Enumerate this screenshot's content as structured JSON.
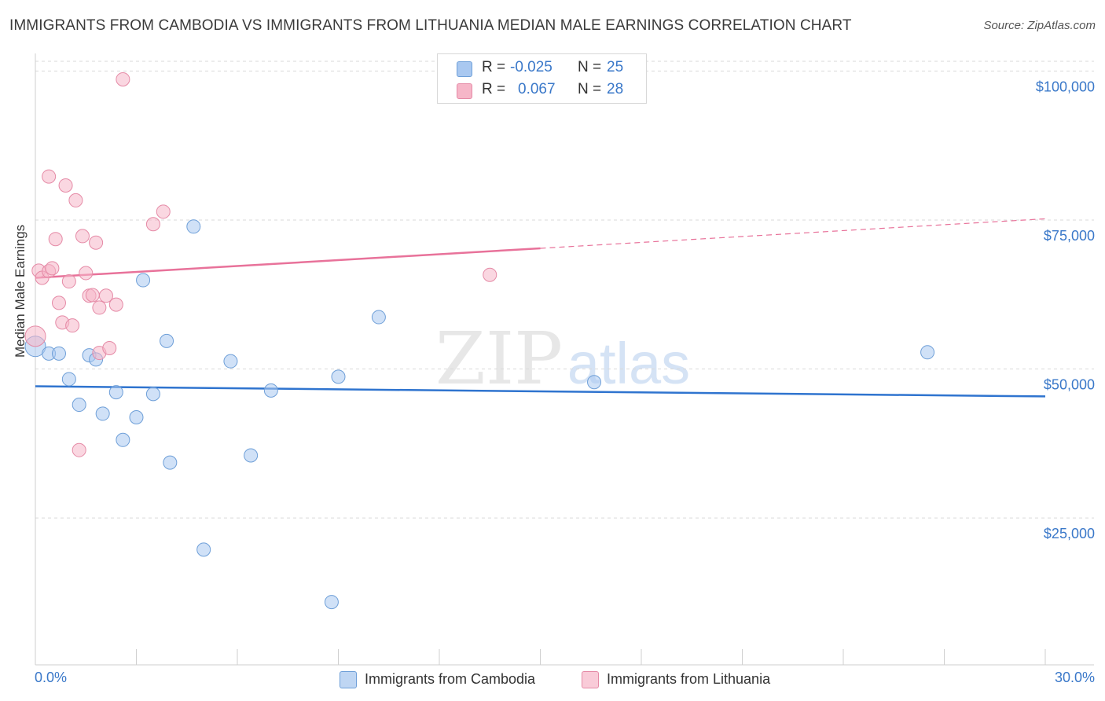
{
  "title": "IMMIGRANTS FROM CAMBODIA VS IMMIGRANTS FROM LITHUANIA MEDIAN MALE EARNINGS CORRELATION CHART",
  "source": "Source: ZipAtlas.com",
  "watermark": {
    "zip": "ZIP",
    "atlas": "atlas"
  },
  "stats": [
    {
      "r_label": "R =",
      "r_value": "-0.025",
      "n_label": "N =",
      "n_value": "25",
      "color": "#a9c8f0"
    },
    {
      "r_label": "R =",
      "r_value": "0.067",
      "n_label": "N =",
      "n_value": "28",
      "color": "#f6b6c8"
    }
  ],
  "legend": [
    {
      "label": "Immigrants from Cambodia",
      "color": "#a9c8f0"
    },
    {
      "label": "Immigrants from Lithuania",
      "color": "#f6b6c8"
    }
  ],
  "x_axis": {
    "min_label": "0.0%",
    "max_label": "30.0%"
  },
  "chart_data": {
    "type": "scatter",
    "title": "IMMIGRANTS FROM CAMBODIA VS IMMIGRANTS FROM LITHUANIA MEDIAN MALE EARNINGS CORRELATION CHART",
    "xlabel": "",
    "ylabel": "Median Male Earnings",
    "xlim": [
      0,
      30
    ],
    "ylim": [
      3000,
      104000
    ],
    "yticks": [
      25000,
      50000,
      75000,
      100000
    ],
    "ytick_labels": [
      "$25,000",
      "$50,000",
      "$75,000",
      "$100,000"
    ],
    "grid": true,
    "series": [
      {
        "name": "Immigrants from Cambodia",
        "color": "#a9c8f0",
        "stroke": "#6e9fd8",
        "trend_color": "#2f74cf",
        "trend": {
          "x0": 0,
          "y0": 47100,
          "x1": 30,
          "y1": 45400,
          "solid_to": 30
        },
        "points": [
          [
            0.0,
            53800
          ],
          [
            0.4,
            52600
          ],
          [
            0.7,
            52600
          ],
          [
            1.0,
            48300
          ],
          [
            1.3,
            44000
          ],
          [
            1.6,
            52300
          ],
          [
            1.8,
            51600
          ],
          [
            2.0,
            42500
          ],
          [
            2.4,
            46100
          ],
          [
            2.6,
            38100
          ],
          [
            3.0,
            41900
          ],
          [
            3.2,
            64900
          ],
          [
            3.5,
            45800
          ],
          [
            3.9,
            54700
          ],
          [
            4.0,
            34300
          ],
          [
            4.7,
            73900
          ],
          [
            5.0,
            19700
          ],
          [
            5.8,
            51300
          ],
          [
            6.4,
            35500
          ],
          [
            7.0,
            46400
          ],
          [
            8.8,
            10900
          ],
          [
            9.0,
            48700
          ],
          [
            10.2,
            58700
          ],
          [
            16.6,
            47800
          ],
          [
            26.5,
            52800
          ]
        ]
      },
      {
        "name": "Immigrants from Lithuania",
        "color": "#f6b6c8",
        "stroke": "#e58aa6",
        "trend_color": "#e8729a",
        "trend": {
          "x0": 0,
          "y0": 65300,
          "x1": 30,
          "y1": 75200,
          "solid_to": 15
        },
        "points": [
          [
            0.0,
            55500
          ],
          [
            0.1,
            66500
          ],
          [
            0.2,
            65300
          ],
          [
            0.4,
            66400
          ],
          [
            0.4,
            82300
          ],
          [
            0.5,
            66900
          ],
          [
            0.6,
            71800
          ],
          [
            0.7,
            61100
          ],
          [
            0.8,
            57800
          ],
          [
            0.9,
            80800
          ],
          [
            1.0,
            64700
          ],
          [
            1.1,
            57300
          ],
          [
            1.2,
            78300
          ],
          [
            1.3,
            36400
          ],
          [
            1.4,
            72300
          ],
          [
            1.5,
            66100
          ],
          [
            1.6,
            62300
          ],
          [
            1.7,
            62400
          ],
          [
            1.8,
            71200
          ],
          [
            1.9,
            52700
          ],
          [
            1.9,
            60300
          ],
          [
            2.1,
            62300
          ],
          [
            2.2,
            53500
          ],
          [
            2.4,
            60800
          ],
          [
            2.6,
            98600
          ],
          [
            3.5,
            74300
          ],
          [
            3.8,
            76400
          ],
          [
            13.5,
            65800
          ]
        ]
      }
    ]
  }
}
